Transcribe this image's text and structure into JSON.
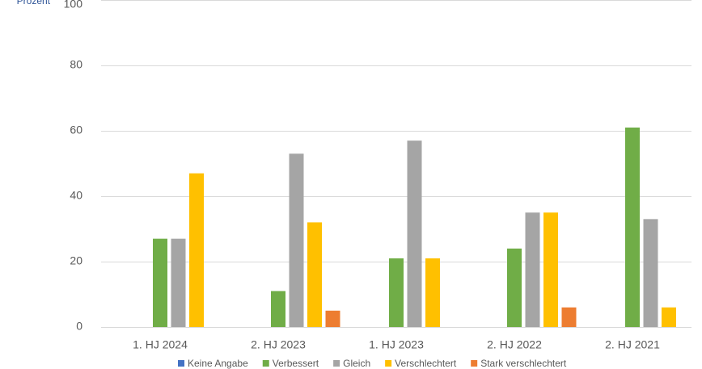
{
  "chart_data": {
    "type": "bar",
    "y_label": "Prozent",
    "categories": [
      "1. HJ 2024",
      "2. HJ 2023",
      "1. HJ 2023",
      "2. HJ 2022",
      "2. HJ 2021"
    ],
    "series": [
      {
        "name": "Keine Angabe",
        "color": "#4472c4",
        "values": [
          0,
          0,
          0,
          0,
          0
        ]
      },
      {
        "name": "Verbessert",
        "color": "#70ad47",
        "values": [
          27,
          11,
          21,
          24,
          61
        ]
      },
      {
        "name": "Gleich",
        "color": "#a5a5a5",
        "values": [
          27,
          53,
          57,
          35,
          33
        ]
      },
      {
        "name": "Verschlechtert",
        "color": "#ffc000",
        "values": [
          47,
          32,
          21,
          35,
          6
        ]
      },
      {
        "name": "Stark verschlechtert",
        "color": "#ed7d31",
        "values": [
          0,
          5,
          0,
          6,
          0
        ]
      }
    ],
    "ylim": [
      0,
      100
    ],
    "yticks": [
      0,
      20,
      40,
      60,
      80,
      100
    ],
    "grid": true,
    "legend": "bottom"
  }
}
